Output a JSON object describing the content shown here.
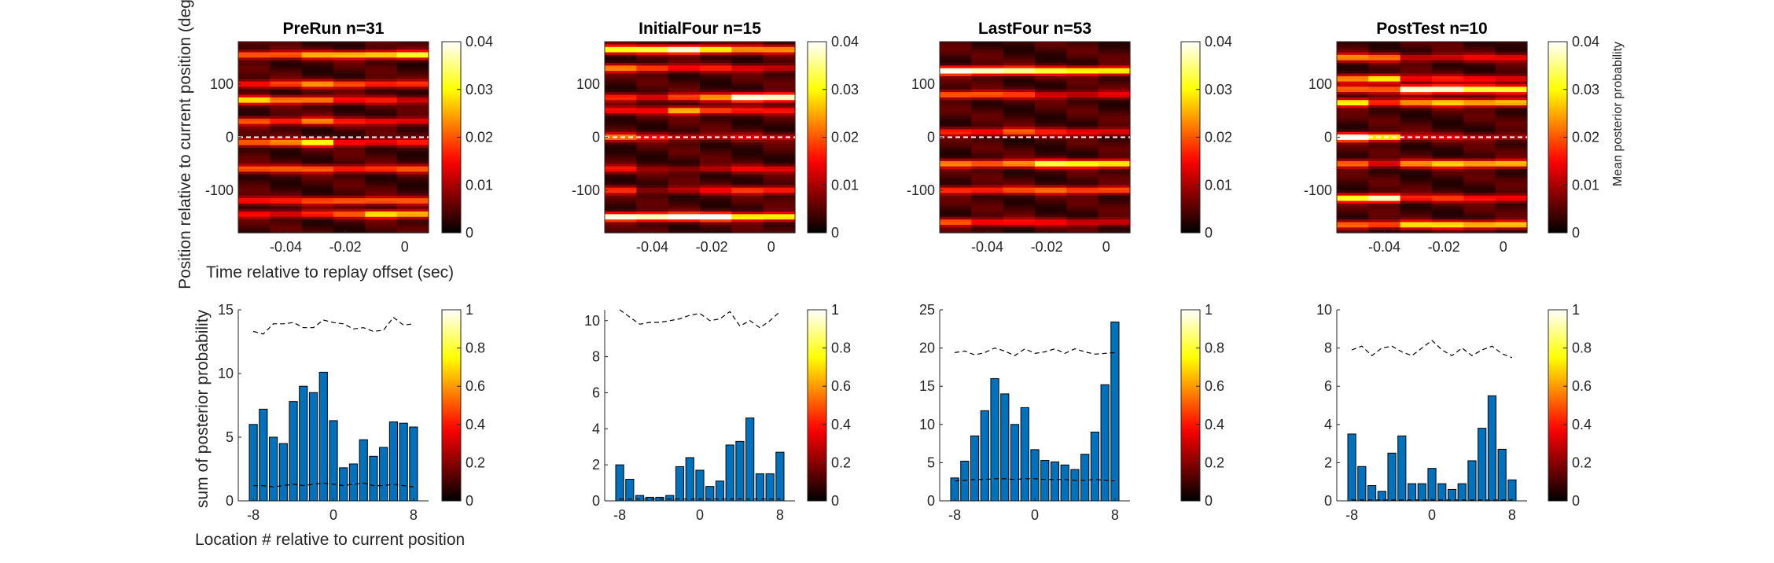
{
  "figure": {
    "ylabel_top": "Position relative to current position (deg)",
    "xlabel_top": "Time relative to replay offset (sec)",
    "ylabel_bottom": "sum of posterior probability",
    "xlabel_bottom": "Location # relative to current position",
    "colorbar_label_top": "Mean posterior probability"
  },
  "chart_data": [
    {
      "type": "heatmap",
      "title": "PreRun n=31",
      "x_ticks": [
        "-0.04",
        "-0.02",
        "0"
      ],
      "y_ticks": [
        "100",
        "0",
        "-100"
      ],
      "xlim": [
        -0.056,
        0.008
      ],
      "ylim": [
        -180,
        180
      ],
      "time_bins": [
        -0.05,
        -0.04,
        -0.03,
        -0.02,
        -0.01,
        0.0
      ],
      "clim": [
        0,
        0.04
      ],
      "colorbar_ticks": [
        "0",
        "0.01",
        "0.02",
        "0.03",
        "0.04"
      ],
      "colormap": "hot",
      "reference_line_y": 0,
      "peaks": [
        {
          "y": 155,
          "strength": [
            0.02,
            0.018,
            0.022,
            0.025,
            0.028,
            0.03
          ]
        },
        {
          "y": 100,
          "strength": [
            0.015,
            0.016,
            0.02,
            0.018,
            0.016,
            0.014
          ]
        },
        {
          "y": 70,
          "strength": [
            0.025,
            0.02,
            0.022,
            0.012,
            0.012,
            0.01
          ]
        },
        {
          "y": 30,
          "strength": [
            0.018,
            0.016,
            0.02,
            0.012,
            0.013,
            0.012
          ]
        },
        {
          "y": -10,
          "strength": [
            0.02,
            0.02,
            0.028,
            0.014,
            0.012,
            0.012
          ]
        },
        {
          "y": -60,
          "strength": [
            0.018,
            0.016,
            0.018,
            0.016,
            0.015,
            0.016
          ]
        },
        {
          "y": -120,
          "strength": [
            0.014,
            0.012,
            0.016,
            0.02,
            0.018,
            0.016
          ]
        },
        {
          "y": -145,
          "strength": [
            0.012,
            0.012,
            0.014,
            0.016,
            0.028,
            0.026
          ]
        }
      ]
    },
    {
      "type": "heatmap",
      "title": "InitialFour n=15",
      "x_ticks": [
        "-0.04",
        "-0.02",
        "0"
      ],
      "y_ticks": [
        "100",
        "0",
        "-100"
      ],
      "xlim": [
        -0.056,
        0.008
      ],
      "ylim": [
        -180,
        180
      ],
      "time_bins": [
        -0.05,
        -0.04,
        -0.03,
        -0.02,
        -0.01,
        0.0
      ],
      "clim": [
        0,
        0.04
      ],
      "colorbar_ticks": [
        "0",
        "0.01",
        "0.02",
        "0.03",
        "0.04"
      ],
      "colormap": "hot",
      "reference_line_y": 0,
      "peaks": [
        {
          "y": 165,
          "strength": [
            0.03,
            0.03,
            0.04,
            0.03,
            0.02,
            0.02
          ]
        },
        {
          "y": 130,
          "strength": [
            0.02,
            0.018,
            0.012,
            0.012,
            0.01,
            0.01
          ]
        },
        {
          "y": 75,
          "strength": [
            0.014,
            0.012,
            0.016,
            0.02,
            0.04,
            0.04
          ]
        },
        {
          "y": 50,
          "strength": [
            0.012,
            0.01,
            0.025,
            0.018,
            0.012,
            0.012
          ]
        },
        {
          "y": 0,
          "strength": [
            0.018,
            0.012,
            0.01,
            0.008,
            0.008,
            0.008
          ]
        },
        {
          "y": -60,
          "strength": [
            0.012,
            0.004,
            0.006,
            0.008,
            0.01,
            0.01
          ]
        },
        {
          "y": -100,
          "strength": [
            0.014,
            0.006,
            0.008,
            0.01,
            0.016,
            0.016
          ]
        },
        {
          "y": -150,
          "strength": [
            0.04,
            0.04,
            0.04,
            0.04,
            0.03,
            0.03
          ]
        }
      ]
    },
    {
      "type": "heatmap",
      "title": "LastFour n=53",
      "x_ticks": [
        "-0.04",
        "-0.02",
        "0"
      ],
      "y_ticks": [
        "100",
        "0",
        "-100"
      ],
      "xlim": [
        -0.056,
        0.008
      ],
      "ylim": [
        -180,
        180
      ],
      "time_bins": [
        -0.05,
        -0.04,
        -0.03,
        -0.02,
        -0.01,
        0.0
      ],
      "clim": [
        0,
        0.04
      ],
      "colorbar_ticks": [
        "0",
        "0.01",
        "0.02",
        "0.03",
        "0.04"
      ],
      "colormap": "hot",
      "reference_line_y": 0,
      "peaks": [
        {
          "y": 125,
          "strength": [
            0.04,
            0.04,
            0.035,
            0.03,
            0.03,
            0.03
          ]
        },
        {
          "y": 80,
          "strength": [
            0.02,
            0.018,
            0.014,
            0.01,
            0.01,
            0.01
          ]
        },
        {
          "y": 10,
          "strength": [
            0.014,
            0.014,
            0.018,
            0.012,
            0.012,
            0.012
          ]
        },
        {
          "y": -50,
          "strength": [
            0.02,
            0.02,
            0.022,
            0.03,
            0.03,
            0.03
          ]
        },
        {
          "y": -100,
          "strength": [
            0.016,
            0.016,
            0.016,
            0.018,
            0.018,
            0.018
          ]
        },
        {
          "y": -160,
          "strength": [
            0.018,
            0.014,
            0.012,
            0.01,
            0.01,
            0.01
          ]
        }
      ]
    },
    {
      "type": "heatmap",
      "title": "PostTest n=10",
      "x_ticks": [
        "-0.04",
        "-0.02",
        "0"
      ],
      "y_ticks": [
        "100",
        "0",
        "-100"
      ],
      "xlim": [
        -0.056,
        0.008
      ],
      "ylim": [
        -180,
        180
      ],
      "time_bins": [
        -0.05,
        -0.04,
        -0.03,
        -0.02,
        -0.01,
        0.0
      ],
      "clim": [
        0,
        0.04
      ],
      "colorbar_ticks": [
        "0",
        "0.01",
        "0.02",
        "0.03",
        "0.04"
      ],
      "colormap": "hot",
      "reference_line_y": 0,
      "colorbar_label": "Mean posterior probability",
      "peaks": [
        {
          "y": 150,
          "strength": [
            0.02,
            0.018,
            0.01,
            0.01,
            0.01,
            0.01
          ]
        },
        {
          "y": 110,
          "strength": [
            0.02,
            0.03,
            0.012,
            0.012,
            0.012,
            0.012
          ]
        },
        {
          "y": 90,
          "strength": [
            0.018,
            0.016,
            0.04,
            0.04,
            0.03,
            0.03
          ]
        },
        {
          "y": 65,
          "strength": [
            0.03,
            0.016,
            0.02,
            0.025,
            0.025,
            0.025
          ]
        },
        {
          "y": 0,
          "strength": [
            0.04,
            0.03,
            0.01,
            0.008,
            0.008,
            0.008
          ]
        },
        {
          "y": -50,
          "strength": [
            0.02,
            0.012,
            0.02,
            0.025,
            0.025,
            0.025
          ]
        },
        {
          "y": -115,
          "strength": [
            0.03,
            0.04,
            0.014,
            0.014,
            0.014,
            0.014
          ]
        },
        {
          "y": -165,
          "strength": [
            0.02,
            0.018,
            0.026,
            0.026,
            0.026,
            0.026
          ]
        }
      ]
    },
    {
      "type": "bar",
      "x": [
        -8,
        -7,
        -6,
        -5,
        -4,
        -3,
        -2,
        -1,
        0,
        1,
        2,
        3,
        4,
        5,
        6,
        7,
        8
      ],
      "values": [
        6.0,
        7.2,
        5.0,
        4.5,
        7.8,
        9.0,
        8.5,
        10.1,
        6.3,
        2.6,
        2.9,
        4.8,
        3.5,
        4.2,
        6.2,
        6.1,
        5.8
      ],
      "upper_line": [
        13.3,
        13.1,
        13.9,
        13.9,
        14.0,
        13.6,
        13.6,
        14.2,
        14.0,
        13.9,
        13.5,
        13.6,
        13.3,
        13.4,
        14.4,
        13.8,
        13.9
      ],
      "lower_line": [
        1.2,
        1.2,
        1.1,
        1.2,
        1.3,
        1.2,
        1.3,
        1.4,
        1.3,
        1.2,
        1.3,
        1.4,
        1.2,
        1.2,
        1.3,
        1.2,
        1.1
      ],
      "xlim": [
        -9.5,
        9.5
      ],
      "ylim": [
        0,
        15
      ],
      "x_ticks": [
        "-8",
        "0",
        "8"
      ],
      "y_ticks": [
        "0",
        "5",
        "10",
        "15"
      ],
      "bar_color": "#0072BD",
      "colorbar_ticks": [
        "0",
        "0.2",
        "0.4",
        "0.6",
        "0.8",
        "1"
      ],
      "colormap": "hot"
    },
    {
      "type": "bar",
      "x": [
        -8,
        -7,
        -6,
        -5,
        -4,
        -3,
        -2,
        -1,
        0,
        1,
        2,
        3,
        4,
        5,
        6,
        7,
        8
      ],
      "values": [
        2.0,
        1.2,
        0.3,
        0.2,
        0.2,
        0.3,
        1.9,
        2.4,
        1.7,
        0.8,
        1.1,
        3.1,
        3.3,
        4.6,
        1.5,
        1.5,
        2.7
      ],
      "upper_line": [
        10.6,
        10.2,
        9.8,
        9.9,
        9.9,
        10.0,
        10.1,
        10.3,
        10.4,
        10.0,
        10.1,
        10.5,
        9.7,
        10.0,
        9.6,
        10.0,
        10.5
      ],
      "lower_line": [
        0.1,
        0.1,
        0.1,
        0.1,
        0.1,
        0.1,
        0.1,
        0.1,
        0.1,
        0.1,
        0.1,
        0.1,
        0.1,
        0.1,
        0.1,
        0.1,
        0.1
      ],
      "xlim": [
        -9.5,
        9.5
      ],
      "ylim": [
        0,
        10.6
      ],
      "x_ticks": [
        "-8",
        "0",
        "8"
      ],
      "y_ticks": [
        "0",
        "2",
        "4",
        "6",
        "8",
        "10"
      ],
      "bar_color": "#0072BD",
      "colorbar_ticks": [
        "0",
        "0.2",
        "0.4",
        "0.6",
        "0.8",
        "1"
      ],
      "colormap": "hot"
    },
    {
      "type": "bar",
      "x": [
        -8,
        -7,
        -6,
        -5,
        -4,
        -3,
        -2,
        -1,
        0,
        1,
        2,
        3,
        4,
        5,
        6,
        7,
        8
      ],
      "values": [
        3.0,
        5.2,
        8.5,
        11.8,
        16.0,
        14.0,
        10.0,
        12.2,
        6.7,
        5.3,
        5.1,
        4.7,
        4.1,
        6.1,
        9.0,
        15.2,
        23.4
      ],
      "upper_line": [
        19.4,
        19.6,
        19.1,
        19.4,
        20.0,
        19.6,
        19.0,
        19.9,
        19.3,
        19.5,
        19.9,
        19.3,
        19.9,
        19.5,
        19.2,
        19.3,
        19.4
      ],
      "lower_line": [
        2.6,
        2.7,
        2.8,
        2.8,
        2.9,
        2.9,
        2.8,
        2.9,
        2.9,
        2.8,
        2.8,
        2.8,
        2.7,
        2.7,
        2.8,
        2.7,
        2.6
      ],
      "xlim": [
        -9.5,
        9.5
      ],
      "ylim": [
        0,
        25
      ],
      "x_ticks": [
        "-8",
        "0",
        "8"
      ],
      "y_ticks": [
        "0",
        "5",
        "10",
        "15",
        "20",
        "25"
      ],
      "bar_color": "#0072BD",
      "colorbar_ticks": [
        "0",
        "0.2",
        "0.4",
        "0.6",
        "0.8",
        "1"
      ],
      "colormap": "hot"
    },
    {
      "type": "bar",
      "x": [
        -8,
        -7,
        -6,
        -5,
        -4,
        -3,
        -2,
        -1,
        0,
        1,
        2,
        3,
        4,
        5,
        6,
        7,
        8
      ],
      "values": [
        3.5,
        1.8,
        0.8,
        0.5,
        2.5,
        3.4,
        0.9,
        0.9,
        1.7,
        0.9,
        0.6,
        0.9,
        2.1,
        3.8,
        5.5,
        2.7,
        1.1
      ],
      "upper_line": [
        7.9,
        8.1,
        7.6,
        8.0,
        8.1,
        7.8,
        7.6,
        8.0,
        8.4,
        7.9,
        7.6,
        8.0,
        7.6,
        7.9,
        8.1,
        7.7,
        7.5
      ],
      "lower_line": [
        0.05,
        0.05,
        0.05,
        0.05,
        0.05,
        0.05,
        0.05,
        0.05,
        0.05,
        0.05,
        0.05,
        0.05,
        0.05,
        0.05,
        0.05,
        0.05,
        0.05
      ],
      "xlim": [
        -9.5,
        9.5
      ],
      "ylim": [
        0,
        10
      ],
      "x_ticks": [
        "-8",
        "0",
        "8"
      ],
      "y_ticks": [
        "0",
        "2",
        "4",
        "6",
        "8",
        "10"
      ],
      "bar_color": "#0072BD",
      "colorbar_ticks": [
        "0",
        "0.2",
        "0.4",
        "0.6",
        "0.8",
        "1"
      ],
      "colormap": "hot"
    }
  ]
}
